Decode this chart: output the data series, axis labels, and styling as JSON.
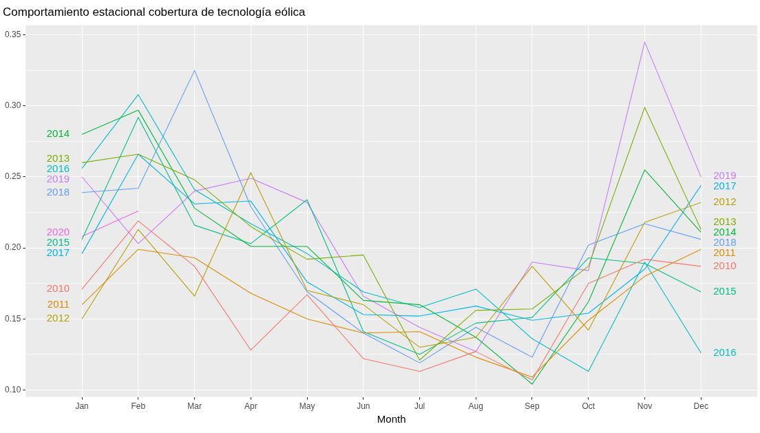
{
  "chart_data": {
    "type": "line",
    "title": "Comportamiento estacional cobertura de tecnología eólica",
    "xlabel": "Month",
    "categories": [
      "Jan",
      "Feb",
      "Mar",
      "Apr",
      "May",
      "Jun",
      "Jul",
      "Aug",
      "Sep",
      "Oct",
      "Nov",
      "Dec"
    ],
    "ylim": [
      0.095,
      0.357
    ],
    "yticks": [
      {
        "value": 0.1,
        "label": "0.10"
      },
      {
        "value": 0.125,
        "label": null
      },
      {
        "value": 0.15,
        "label": "0.15"
      },
      {
        "value": 0.175,
        "label": null
      },
      {
        "value": 0.2,
        "label": "0.20"
      },
      {
        "value": 0.225,
        "label": null
      },
      {
        "value": 0.25,
        "label": "0.25"
      },
      {
        "value": 0.275,
        "label": null
      },
      {
        "value": 0.3,
        "label": "0.30"
      },
      {
        "value": 0.325,
        "label": null
      },
      {
        "value": 0.35,
        "label": "0.35"
      }
    ],
    "grid": true,
    "legend": false,
    "marker": "none",
    "line_style": "solid",
    "series": [
      {
        "name": "2010",
        "color": "#f8766d",
        "values": [
          0.171,
          0.219,
          0.187,
          0.128,
          0.167,
          0.122,
          0.113,
          0.127,
          0.107,
          0.175,
          0.192,
          0.187
        ]
      },
      {
        "name": "2011",
        "color": "#de8c00",
        "values": [
          0.16,
          0.199,
          0.193,
          0.168,
          0.15,
          0.14,
          0.141,
          0.123,
          0.109,
          0.149,
          0.18,
          0.199
        ]
      },
      {
        "name": "2012",
        "color": "#b79f00",
        "values": [
          0.15,
          0.213,
          0.166,
          0.253,
          0.17,
          0.16,
          0.13,
          0.137,
          0.187,
          0.142,
          0.218,
          0.232
        ]
      },
      {
        "name": "2013",
        "color": "#7cae00",
        "values": [
          0.26,
          0.266,
          0.248,
          0.215,
          0.192,
          0.195,
          0.121,
          0.156,
          0.157,
          0.187,
          0.299,
          0.213
        ]
      },
      {
        "name": "2014",
        "color": "#00ba38",
        "values": [
          0.28,
          0.297,
          0.228,
          0.201,
          0.201,
          0.163,
          0.16,
          0.137,
          0.104,
          0.162,
          0.255,
          0.211
        ]
      },
      {
        "name": "2015",
        "color": "#00c08b",
        "values": [
          0.206,
          0.292,
          0.216,
          0.203,
          0.234,
          0.141,
          0.125,
          0.147,
          0.151,
          0.193,
          0.189,
          0.169
        ]
      },
      {
        "name": "2016",
        "color": "#00bfc4",
        "values": [
          0.256,
          0.308,
          0.241,
          0.217,
          0.196,
          0.169,
          0.158,
          0.171,
          0.136,
          0.113,
          0.19,
          0.126
        ]
      },
      {
        "name": "2017",
        "color": "#00b4f0",
        "values": [
          0.196,
          0.266,
          0.231,
          0.233,
          0.176,
          0.153,
          0.152,
          0.159,
          0.149,
          0.154,
          0.185,
          0.244
        ]
      },
      {
        "name": "2018",
        "color": "#619cff",
        "values": [
          0.239,
          0.242,
          0.325,
          0.229,
          0.169,
          0.14,
          0.119,
          0.144,
          0.123,
          0.202,
          0.217,
          0.206
        ]
      },
      {
        "name": "2019",
        "color": "#c77cff",
        "values": [
          0.25,
          0.203,
          0.24,
          0.249,
          0.232,
          0.166,
          0.144,
          0.127,
          0.19,
          0.184,
          0.345,
          0.25
        ]
      },
      {
        "name": "2020",
        "color": "#f564e3",
        "values": [
          0.208,
          0.226,
          null,
          null,
          null,
          null,
          null,
          null,
          null,
          null,
          null,
          null
        ]
      }
    ]
  }
}
